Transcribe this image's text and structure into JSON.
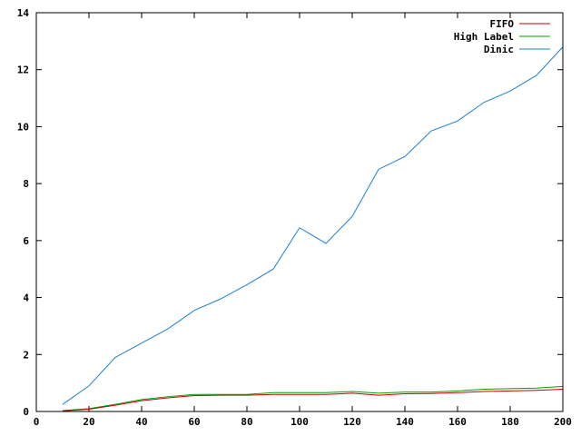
{
  "chart_data": {
    "type": "line",
    "title": "",
    "xlabel": "",
    "ylabel": "",
    "xlim": [
      0,
      200
    ],
    "ylim": [
      0,
      14
    ],
    "xticks": [
      "0",
      "20",
      "40",
      "60",
      "80",
      "100",
      "120",
      "140",
      "160",
      "180",
      "200"
    ],
    "yticks": [
      "0",
      "2",
      "4",
      "6",
      "8",
      "10",
      "12",
      "14"
    ],
    "grid": false,
    "legend_position": "top-right",
    "x": [
      10,
      20,
      30,
      40,
      50,
      60,
      70,
      80,
      90,
      100,
      110,
      120,
      130,
      140,
      150,
      160,
      170,
      180,
      190,
      200
    ],
    "series": [
      {
        "name": "FIFO",
        "color": "#cc0000",
        "values": [
          0.02,
          0.08,
          0.22,
          0.38,
          0.48,
          0.56,
          0.57,
          0.57,
          0.6,
          0.6,
          0.6,
          0.64,
          0.57,
          0.62,
          0.63,
          0.66,
          0.7,
          0.72,
          0.74,
          0.78
        ]
      },
      {
        "name": "High Label",
        "color": "#00a000",
        "values": [
          0.03,
          0.1,
          0.25,
          0.42,
          0.52,
          0.6,
          0.6,
          0.6,
          0.66,
          0.66,
          0.66,
          0.7,
          0.64,
          0.68,
          0.68,
          0.72,
          0.78,
          0.8,
          0.82,
          0.88
        ]
      },
      {
        "name": "Dinic",
        "color": "#1a7fd4",
        "values": [
          0.25,
          0.9,
          1.9,
          2.4,
          2.9,
          3.55,
          3.95,
          4.45,
          5.0,
          6.45,
          5.9,
          6.85,
          8.5,
          8.95,
          9.85,
          10.2,
          10.85,
          11.25,
          11.8,
          12.8
        ]
      }
    ]
  }
}
